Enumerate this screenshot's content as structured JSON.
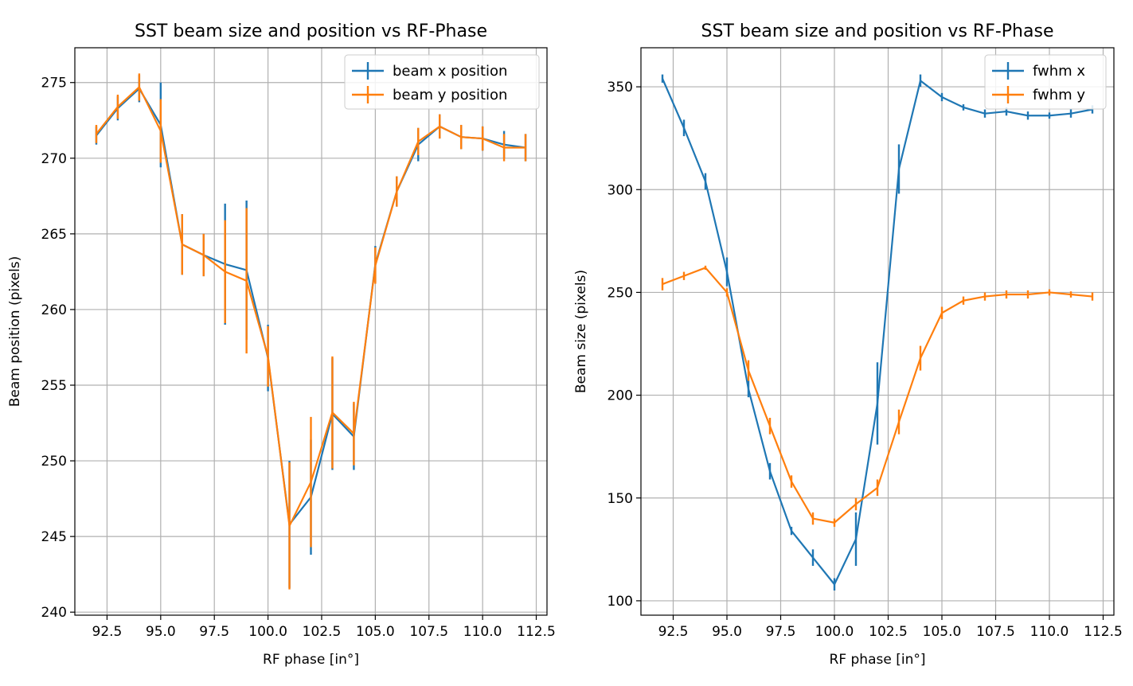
{
  "chart_data": [
    {
      "type": "line",
      "title": "SST beam size and position vs RF-Phase",
      "xlabel": "RF phase [in°]",
      "ylabel": "Beam position (pixels)",
      "xlim": [
        91.0,
        113.0
      ],
      "ylim": [
        239.8,
        277.3
      ],
      "xticks": [
        92.5,
        95.0,
        97.5,
        100.0,
        102.5,
        105.0,
        107.5,
        110.0,
        112.5
      ],
      "xtick_labels": [
        "92.5",
        "95.0",
        "97.5",
        "100.0",
        "102.5",
        "105.0",
        "107.5",
        "110.0",
        "112.5"
      ],
      "yticks": [
        240,
        245,
        250,
        255,
        260,
        265,
        270,
        275
      ],
      "ytick_labels": [
        "240",
        "245",
        "250",
        "255",
        "260",
        "265",
        "270",
        "275"
      ],
      "grid": true,
      "legend_position": "top-right",
      "x": [
        92,
        93,
        94,
        95,
        96,
        97,
        98,
        99,
        100,
        101,
        102,
        103,
        104,
        105,
        106,
        107,
        108,
        109,
        110,
        111,
        112
      ],
      "series": [
        {
          "name": "beam x position",
          "color": "#1f77b4",
          "values": [
            271.5,
            273.3,
            274.6,
            272.2,
            264.3,
            263.6,
            263.0,
            262.6,
            256.8,
            245.8,
            247.6,
            253.1,
            251.6,
            263.0,
            267.8,
            270.9,
            272.1,
            271.4,
            271.3,
            270.9,
            270.7
          ],
          "errors": [
            0.6,
            0.8,
            0.9,
            2.8,
            2.0,
            1.4,
            4.0,
            4.6,
            2.2,
            4.2,
            3.8,
            3.7,
            2.2,
            1.2,
            1.0,
            1.1,
            0.8,
            0.8,
            0.8,
            0.9,
            0.9
          ]
        },
        {
          "name": "beam y position",
          "color": "#ff7f0e",
          "values": [
            271.6,
            273.4,
            274.7,
            271.8,
            264.3,
            263.6,
            262.5,
            261.9,
            256.9,
            245.7,
            248.6,
            253.2,
            251.8,
            262.9,
            267.8,
            271.1,
            272.1,
            271.4,
            271.3,
            270.7,
            270.7
          ],
          "errors": [
            0.6,
            0.8,
            0.9,
            2.1,
            2.0,
            1.4,
            3.4,
            4.8,
            2.0,
            4.2,
            4.3,
            3.7,
            2.1,
            1.2,
            1.0,
            0.9,
            0.8,
            0.8,
            0.8,
            0.9,
            0.9
          ]
        }
      ]
    },
    {
      "type": "line",
      "title": "SST beam size and position vs RF-Phase",
      "xlabel": "RF phase [in°]",
      "ylabel": "Beam size (pixels)",
      "xlim": [
        91.0,
        113.0
      ],
      "ylim": [
        93,
        369
      ],
      "xticks": [
        92.5,
        95.0,
        97.5,
        100.0,
        102.5,
        105.0,
        107.5,
        110.0,
        112.5
      ],
      "xtick_labels": [
        "92.5",
        "95.0",
        "97.5",
        "100.0",
        "102.5",
        "105.0",
        "107.5",
        "110.0",
        "112.5"
      ],
      "yticks": [
        100,
        150,
        200,
        250,
        300,
        350
      ],
      "ytick_labels": [
        "100",
        "150",
        "200",
        "250",
        "300",
        "350"
      ],
      "grid": true,
      "legend_position": "top-right",
      "x": [
        92,
        93,
        94,
        95,
        96,
        97,
        98,
        99,
        100,
        101,
        102,
        103,
        104,
        105,
        106,
        107,
        108,
        109,
        110,
        111,
        112
      ],
      "series": [
        {
          "name": "fwhm x",
          "color": "#1f77b4",
          "values": [
            354,
            330,
            304,
            260,
            203,
            163,
            134,
            121,
            108,
            130,
            196,
            310,
            353,
            345,
            340,
            337,
            338,
            336,
            336,
            337,
            339
          ],
          "errors": [
            2,
            4,
            4,
            7,
            4,
            4,
            2,
            4,
            3,
            13,
            20,
            12,
            3,
            2,
            1.5,
            2,
            2,
            2,
            1.5,
            2,
            2
          ]
        },
        {
          "name": "fwhm y",
          "color": "#ff7f0e",
          "values": [
            254,
            258,
            262,
            250,
            212,
            185,
            158,
            140,
            138,
            147,
            155,
            187,
            218,
            240,
            246,
            248,
            249,
            249,
            250,
            249,
            248
          ],
          "errors": [
            3,
            2,
            1,
            2,
            5,
            4,
            3,
            3,
            2,
            3,
            4,
            6,
            6,
            3,
            2,
            2,
            2,
            2,
            1.5,
            1.5,
            2
          ]
        }
      ]
    }
  ]
}
